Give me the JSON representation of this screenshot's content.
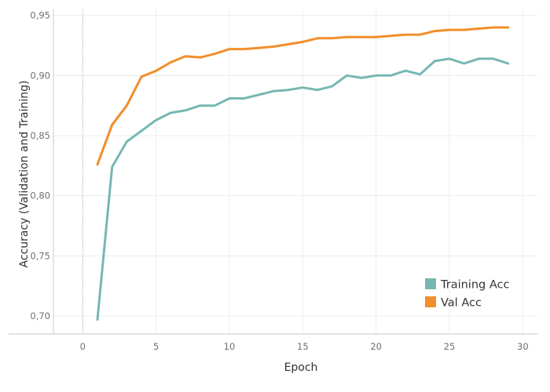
{
  "chart_data": {
    "type": "line",
    "xlabel": "Epoch",
    "ylabel": "Accuracy (Validation and Training)",
    "xlim": [
      -2,
      31
    ],
    "ylim": [
      0.685,
      0.955
    ],
    "xticks": [
      0,
      5,
      10,
      15,
      20,
      25,
      30
    ],
    "yticks": [
      0.7,
      0.75,
      0.8,
      0.85,
      0.9,
      0.95
    ],
    "xtick_labels": [
      "0",
      "5",
      "10",
      "15",
      "20",
      "25",
      "30"
    ],
    "ytick_labels": [
      "0,70",
      "0,75",
      "0,80",
      "0,85",
      "0,90",
      "0,95"
    ],
    "grid": true,
    "zero_line": "dotted vertical at x=0",
    "legend": {
      "position": "bottom-right",
      "entries": [
        "Training Acc",
        "Val Acc"
      ]
    },
    "x": [
      1,
      2,
      3,
      4,
      5,
      6,
      7,
      8,
      9,
      10,
      11,
      12,
      13,
      14,
      15,
      16,
      17,
      18,
      19,
      20,
      21,
      22,
      23,
      24,
      25,
      26,
      27,
      28,
      29
    ],
    "series": [
      {
        "name": "Training Acc",
        "color": "#76b7b2",
        "values": [
          0.697,
          0.824,
          0.845,
          0.854,
          0.863,
          0.869,
          0.871,
          0.875,
          0.875,
          0.881,
          0.881,
          0.884,
          0.887,
          0.888,
          0.89,
          0.888,
          0.891,
          0.9,
          0.898,
          0.9,
          0.9,
          0.904,
          0.901,
          0.912,
          0.914,
          0.91,
          0.914,
          0.914,
          0.91
        ]
      },
      {
        "name": "Val Acc",
        "color": "#f28e2b",
        "values": [
          0.826,
          0.859,
          0.875,
          0.899,
          0.904,
          0.911,
          0.916,
          0.915,
          0.918,
          0.922,
          0.922,
          0.923,
          0.924,
          0.926,
          0.928,
          0.931,
          0.931,
          0.932,
          0.932,
          0.932,
          0.933,
          0.934,
          0.934,
          0.937,
          0.938,
          0.938,
          0.939,
          0.94,
          0.94
        ]
      }
    ]
  }
}
